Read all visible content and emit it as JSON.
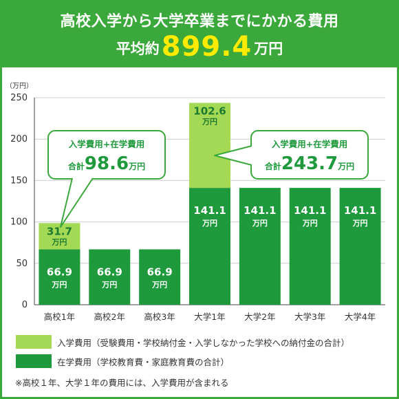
{
  "header": {
    "title": "高校入学から大学卒業までにかかる費用",
    "avg_prefix": "平均約",
    "avg_value": "899.4",
    "avg_unit": "万円"
  },
  "colors": {
    "green": "#3aa83a",
    "light_green": "#a3d955",
    "dark_green": "#1e9a3c",
    "highlight": "#ffeb00"
  },
  "chart_data": {
    "type": "bar",
    "stacked": true,
    "unit_label": "（万円）",
    "ylim": [
      0,
      250
    ],
    "yticks": [
      0,
      50,
      100,
      150,
      200,
      250
    ],
    "grid": true,
    "categories": [
      "高校1年",
      "高校2年",
      "高校3年",
      "大学1年",
      "大学2年",
      "大学3年",
      "大学4年"
    ],
    "series": [
      {
        "name": "在学費用",
        "color": "#1e9a3c",
        "values": [
          66.9,
          66.9,
          66.9,
          141.1,
          141.1,
          141.1,
          141.1
        ],
        "labels": [
          "66.9",
          "66.9",
          "66.9",
          "141.1",
          "141.1",
          "141.1",
          "141.1"
        ]
      },
      {
        "name": "入学費用",
        "color": "#a3d955",
        "values": [
          31.7,
          0,
          0,
          102.6,
          0,
          0,
          0
        ],
        "labels": [
          "31.7",
          "",
          "",
          "102.6",
          "",
          "",
          ""
        ]
      }
    ],
    "value_unit": "万円",
    "callouts": [
      {
        "category_index": 0,
        "title": "入学費用+在学費用",
        "prefix": "合計",
        "value": "98.6",
        "unit": "万円"
      },
      {
        "category_index": 3,
        "title": "入学費用+在学費用",
        "prefix": "合計",
        "value": "243.7",
        "unit": "万円"
      }
    ]
  },
  "legend": [
    {
      "label": "入学費用（受験費用・学校納付金・入学しなかった学校への納付金の合計）",
      "color": "#a3d955"
    },
    {
      "label": "在学費用（学校教育費・家庭教育費の合計）",
      "color": "#1e9a3c"
    }
  ],
  "note": "※高校１年、大学１年の費用には、入学費用が含まれる"
}
